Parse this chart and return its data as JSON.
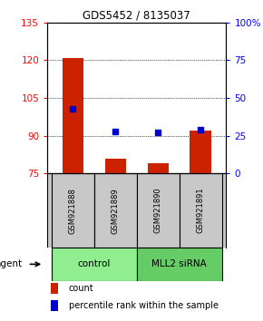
{
  "title": "GDS5452 / 8135037",
  "samples": [
    "GSM921888",
    "GSM921889",
    "GSM921890",
    "GSM921891"
  ],
  "red_values": [
    121,
    81,
    79,
    92
  ],
  "blue_values": [
    43,
    28,
    27,
    29
  ],
  "ylim_left": [
    75,
    135
  ],
  "ylim_right": [
    0,
    100
  ],
  "yticks_left": [
    75,
    90,
    105,
    120,
    135
  ],
  "yticks_right": [
    0,
    25,
    50,
    75,
    100
  ],
  "ytick_labels_right": [
    "0",
    "25",
    "50",
    "75",
    "100%"
  ],
  "groups": [
    {
      "label": "control",
      "samples": [
        0,
        1
      ],
      "color": "#90EE90"
    },
    {
      "label": "MLL2 siRNA",
      "samples": [
        2,
        3
      ],
      "color": "#66CC66"
    }
  ],
  "bar_color": "#CC2200",
  "dot_color": "#0000CC",
  "bar_width": 0.5,
  "background_color": "#ffffff",
  "plot_bg": "#ffffff",
  "agent_label": "agent",
  "legend_count_label": "count",
  "legend_pct_label": "percentile rank within the sample",
  "label_bg": "#c8c8c8"
}
